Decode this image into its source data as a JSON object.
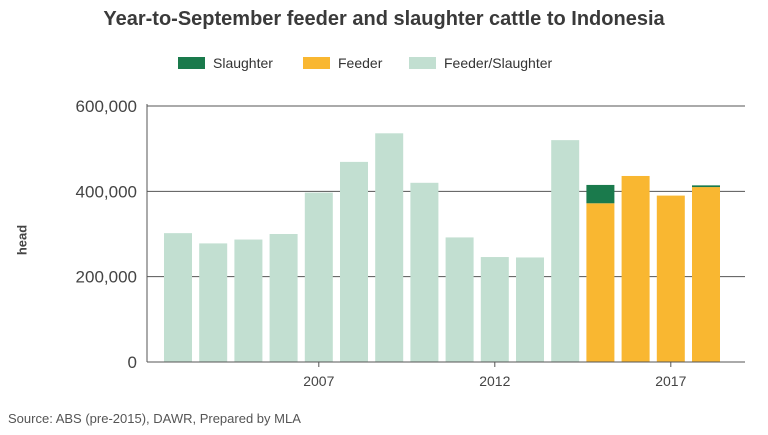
{
  "chart_data": {
    "type": "bar",
    "stacked": true,
    "title": "Year-to-September feeder and slaughter cattle to Indonesia",
    "xlabel": "",
    "ylabel": "head",
    "ylim": [
      0,
      600000
    ],
    "yticks": [
      "0",
      "200,000",
      "400,000",
      "600,000"
    ],
    "ytick_values": [
      0,
      200000,
      400000,
      600000
    ],
    "categories": [
      2003,
      2004,
      2005,
      2006,
      2007,
      2008,
      2009,
      2010,
      2011,
      2012,
      2013,
      2014,
      2015,
      2016,
      2017,
      2018
    ],
    "xtick_labels": [
      {
        "label": "2007",
        "value": 2007
      },
      {
        "label": "2012",
        "value": 2012
      },
      {
        "label": "2017",
        "value": 2017
      }
    ],
    "grid": true,
    "legend_placement": "top",
    "series": [
      {
        "name": "Slaughter",
        "color": "#1a7a4c",
        "values": [
          0,
          0,
          0,
          0,
          0,
          0,
          0,
          0,
          0,
          0,
          0,
          0,
          43000,
          0,
          0,
          4000
        ]
      },
      {
        "name": "Feeder",
        "color": "#f9b731",
        "values": [
          0,
          0,
          0,
          0,
          0,
          0,
          0,
          0,
          0,
          0,
          0,
          0,
          372000,
          436000,
          390000,
          410000
        ]
      },
      {
        "name": "Feeder/Slaughter",
        "color": "#c2dfd1",
        "values": [
          302000,
          278000,
          287000,
          300000,
          397000,
          469000,
          536000,
          420000,
          292000,
          246000,
          245000,
          520000,
          0,
          0,
          0,
          0
        ]
      }
    ]
  },
  "source": "Source: ABS (pre-2015), DAWR, Prepared by MLA"
}
